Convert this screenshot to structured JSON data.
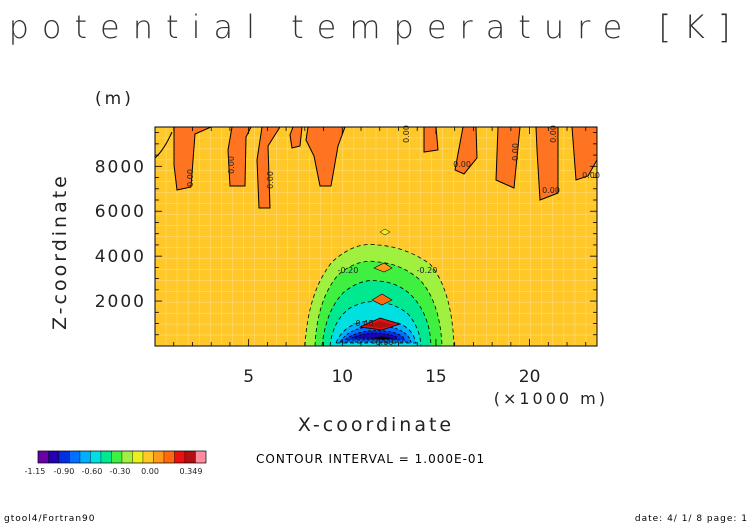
{
  "chart_data": {
    "type": "heatmap",
    "title": "potential temperature [K]",
    "xlabel": "X-coordinate",
    "x_unit": "(×1000 m)",
    "ylabel": "Z-coordinate",
    "y_unit": "(m)",
    "xlim": [
      0,
      23.6
    ],
    "ylim": [
      0,
      9750
    ],
    "x_ticks": [
      5,
      10,
      15,
      20
    ],
    "y_ticks": [
      2000,
      4000,
      6000,
      8000
    ],
    "contour_interval_text": "CONTOUR INTERVAL = 1.000E-01",
    "contour_labels": [
      "0.00",
      "0.00",
      "0.00",
      "0.00",
      "0.00",
      "0.00",
      "0.00",
      "0.00",
      "0.00",
      "-0.20",
      "-0.20",
      "-0.40",
      "-0.60"
    ],
    "colorbar": {
      "labels": [
        "-1.15",
        "-0.90",
        "-0.60",
        "-0.30",
        "0.00",
        "0.349"
      ],
      "colors": [
        "#6a00a8",
        "#2000b0",
        "#0030e0",
        "#0070ff",
        "#00b0ff",
        "#00e0e0",
        "#00e890",
        "#40f040",
        "#a0f040",
        "#e8f020",
        "#ffc828",
        "#ff9a1a",
        "#ff6a10",
        "#e81010",
        "#b01010",
        "#ff8ca0"
      ]
    },
    "grid": true,
    "background_color": "#ffc828",
    "positive_color": "#ff7420"
  },
  "footer": {
    "left": "gtool4/Fortran90",
    "right": "date: 4/ 1/ 8 page: 1"
  }
}
